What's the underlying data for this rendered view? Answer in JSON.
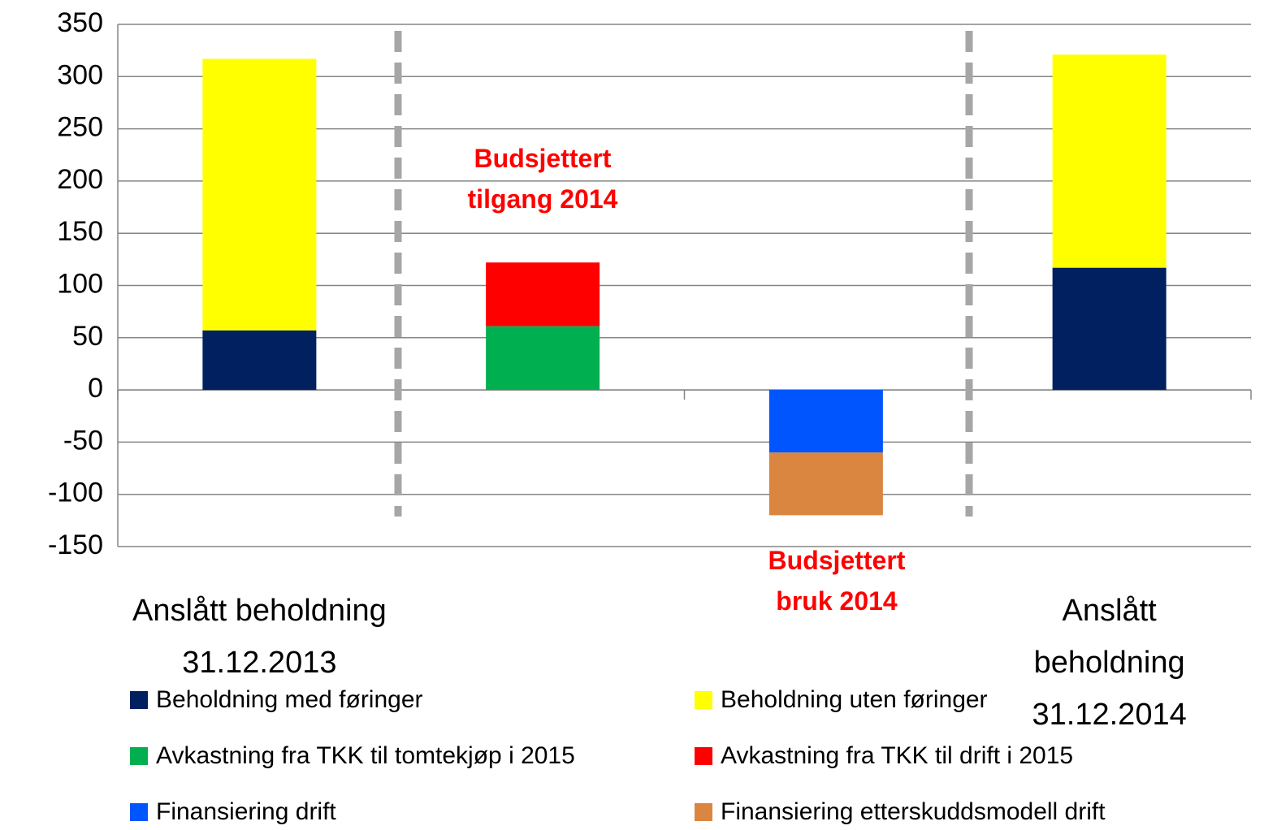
{
  "chart_data": {
    "type": "bar",
    "stacked": true,
    "categories": [
      "Anslått beholdning\n31.12.2013",
      null,
      null,
      "Anslått beholdning\n31.12.2014"
    ],
    "series": [
      {
        "name": "Beholdning med føringer",
        "color": "#002060",
        "values": [
          57,
          null,
          null,
          117
        ]
      },
      {
        "name": "Beholdning uten føringer",
        "color": "#ffff00",
        "values": [
          260,
          null,
          null,
          204
        ]
      },
      {
        "name": "Avkastning fra TKK til tomtekjøp i 2015",
        "color": "#00b050",
        "values": [
          null,
          61,
          null,
          null
        ]
      },
      {
        "name": "Avkastning fra TKK til drift i 2015",
        "color": "#ff0000",
        "values": [
          null,
          61,
          null,
          null
        ]
      },
      {
        "name": "Finansiering drift",
        "color": "#0055ff",
        "values": [
          null,
          null,
          -60,
          null
        ]
      },
      {
        "name": "Finansiering etterskuddsmodell drift",
        "color": "#da8640",
        "values": [
          null,
          null,
          -60,
          null
        ]
      }
    ],
    "annotations": [
      "Budsjettert\ntilgang 2014",
      "Budsjettert\nbruk 2014"
    ],
    "ylim": [
      -150,
      350
    ],
    "yticks": [
      -150,
      -100,
      -50,
      0,
      50,
      100,
      150,
      200,
      250,
      300,
      350
    ],
    "grid": true,
    "legend": "bottom"
  }
}
